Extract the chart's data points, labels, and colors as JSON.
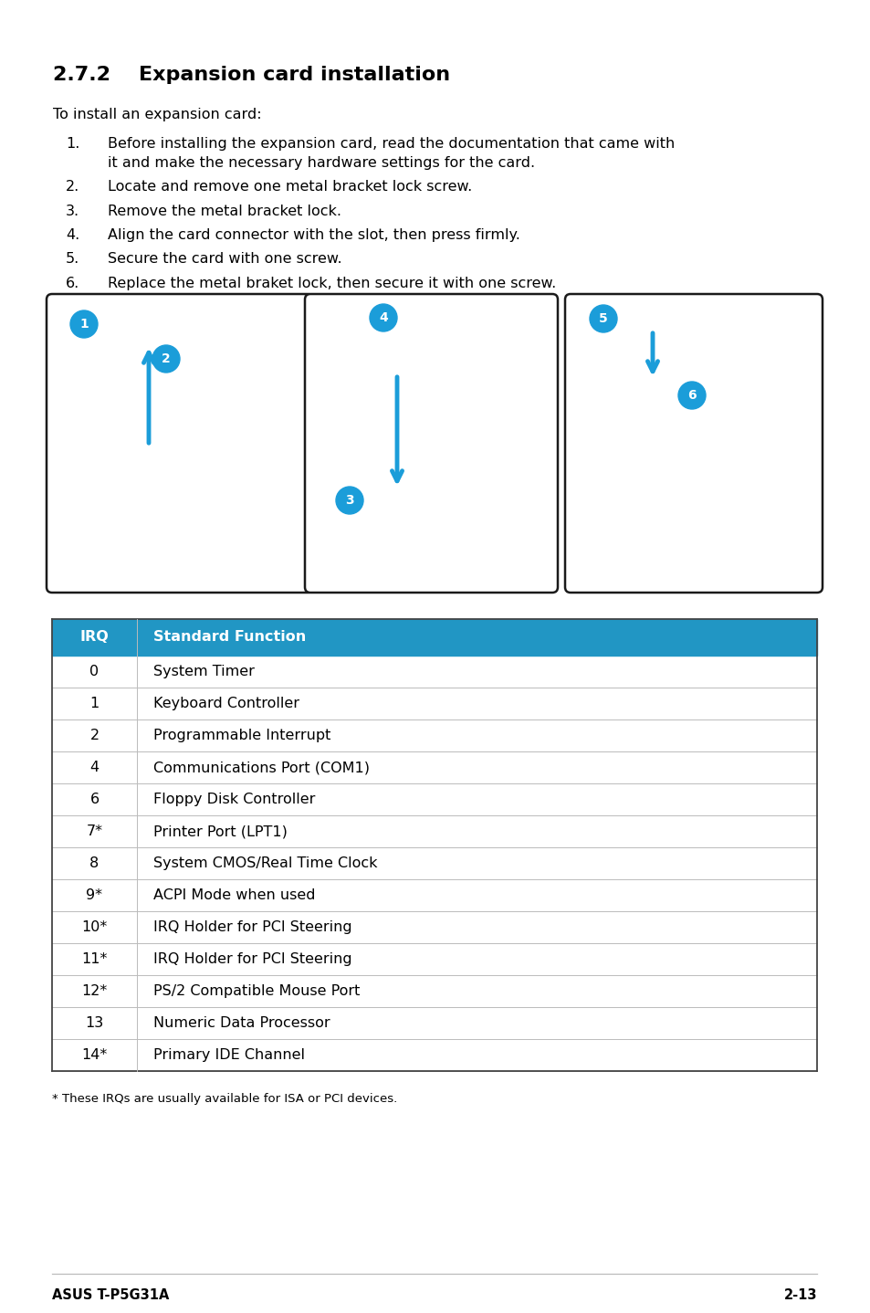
{
  "title": "2.7.2    Expansion card installation",
  "intro": "To install an expansion card:",
  "steps": [
    "Before installing the expansion card, read the documentation that came with\nit and make the necessary hardware settings for the card.",
    "Locate and remove one metal bracket lock screw.",
    "Remove the metal bracket lock.",
    "Align the card connector with the slot, then press firmly.",
    "Secure the card with one screw.",
    "Replace the metal braket lock, then secure it with one screw."
  ],
  "table_header": [
    "IRQ",
    "Standard Function"
  ],
  "table_rows": [
    [
      "0",
      "System Timer"
    ],
    [
      "1",
      "Keyboard Controller"
    ],
    [
      "2",
      "Programmable Interrupt"
    ],
    [
      "4",
      "Communications Port (COM1)"
    ],
    [
      "6",
      "Floppy Disk Controller"
    ],
    [
      "7*",
      "Printer Port (LPT1)"
    ],
    [
      "8",
      "System CMOS/Real Time Clock"
    ],
    [
      "9*",
      "ACPI Mode when used"
    ],
    [
      "10*",
      "IRQ Holder for PCI Steering"
    ],
    [
      "11*",
      "IRQ Holder for PCI Steering"
    ],
    [
      "12*",
      "PS/2 Compatible Mouse Port"
    ],
    [
      "13",
      "Numeric Data Processor"
    ],
    [
      "14*",
      "Primary IDE Channel"
    ]
  ],
  "table_note": "* These IRQs are usually available for ISA or PCI devices.",
  "footer_left": "ASUS T-P5G31A",
  "footer_right": "2-13",
  "header_bg": "#2196C4",
  "header_text_color": "#FFFFFF",
  "row_color": "#FFFFFF",
  "table_border_color": "#BBBBBB",
  "title_color": "#000000",
  "bg_color": "#FFFFFF"
}
